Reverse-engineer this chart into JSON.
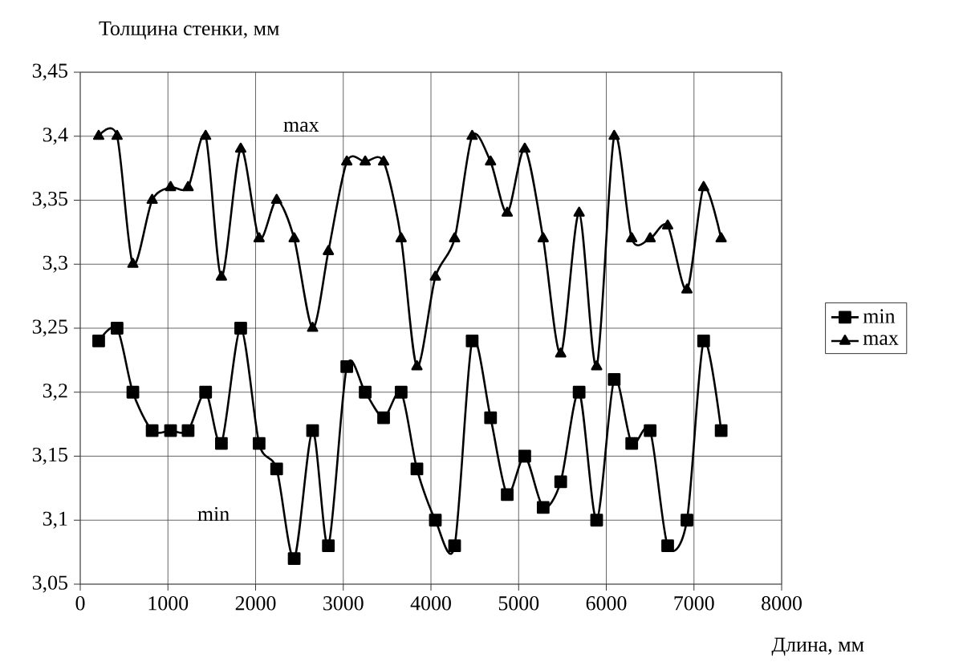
{
  "chart_data": {
    "type": "line",
    "xlabel": "Длина, мм",
    "ylabel": "Толщина стенки, мм",
    "x": [
      210,
      420,
      600,
      820,
      1030,
      1230,
      1430,
      1610,
      1830,
      2040,
      2240,
      2440,
      2650,
      2830,
      3040,
      3250,
      3460,
      3660,
      3840,
      4050,
      4270,
      4470,
      4680,
      4870,
      5070,
      5280,
      5480,
      5690,
      5890,
      6090,
      6290,
      6500,
      6700,
      6920,
      7110,
      7310
    ],
    "series": [
      {
        "name": "min",
        "color": "#000000",
        "marker": "square",
        "values": [
          3.24,
          3.25,
          3.2,
          3.17,
          3.17,
          3.17,
          3.2,
          3.16,
          3.25,
          3.16,
          3.14,
          3.07,
          3.17,
          3.08,
          3.22,
          3.2,
          3.18,
          3.2,
          3.14,
          3.1,
          3.08,
          3.24,
          3.18,
          3.12,
          3.15,
          3.11,
          3.13,
          3.2,
          3.1,
          3.21,
          3.16,
          3.17,
          3.08,
          3.1,
          3.24,
          3.17
        ]
      },
      {
        "name": "max",
        "color": "#000000",
        "marker": "triangle",
        "values": [
          3.4,
          3.4,
          3.3,
          3.35,
          3.36,
          3.36,
          3.4,
          3.29,
          3.39,
          3.32,
          3.35,
          3.32,
          3.25,
          3.31,
          3.38,
          3.38,
          3.38,
          3.32,
          3.22,
          3.29,
          3.32,
          3.4,
          3.38,
          3.34,
          3.39,
          3.32,
          3.23,
          3.34,
          3.22,
          3.4,
          3.32,
          3.32,
          3.33,
          3.28,
          3.36,
          3.32
        ]
      }
    ],
    "xlim": [
      0,
      8000
    ],
    "xticks": [
      0,
      1000,
      2000,
      3000,
      4000,
      5000,
      6000,
      7000,
      8000
    ],
    "ylim": [
      3.05,
      3.45
    ],
    "yticks": [
      {
        "value": 3.05,
        "label": "3,05"
      },
      {
        "value": 3.1,
        "label": "3,1"
      },
      {
        "value": 3.15,
        "label": "3,15"
      },
      {
        "value": 3.2,
        "label": "3,2"
      },
      {
        "value": 3.25,
        "label": "3,25"
      },
      {
        "value": 3.3,
        "label": "3,3"
      },
      {
        "value": 3.35,
        "label": "3,35"
      },
      {
        "value": 3.4,
        "label": "3,4"
      },
      {
        "value": 3.45,
        "label": "3,45"
      }
    ],
    "annotations": [
      "max",
      "min"
    ],
    "grid": true,
    "legend": "right",
    "line_style": "solid"
  }
}
